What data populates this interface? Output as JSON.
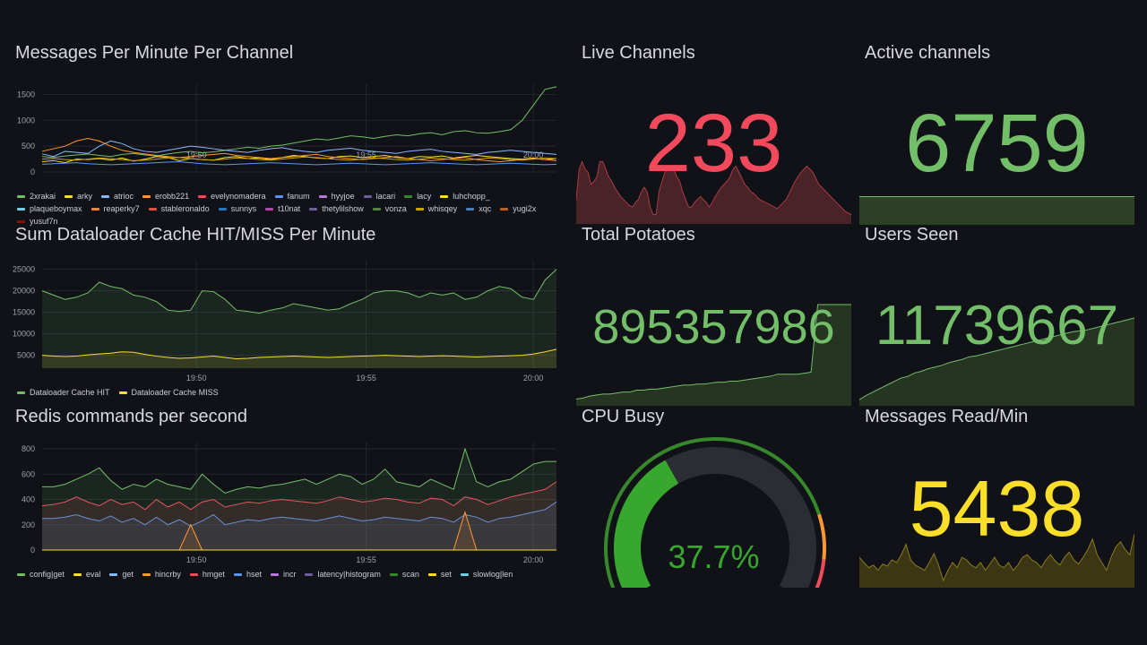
{
  "colors": {
    "red": "#f2495c",
    "green": "#73bf69",
    "yellow": "#fade2a",
    "gaugeGreen": "#37872d",
    "gaugeTrack": "#2a2d33"
  },
  "panels": {
    "messages": {
      "title": "Messages Per Minute Per Channel",
      "legend": [
        "2xrakai",
        "arky",
        "atrioc",
        "erobb221",
        "evelynomadera",
        "fanum",
        "hyyjoe",
        "lacari",
        "lacy",
        "luhchopp_",
        "plaqueboymax",
        "reaperky7",
        "stableronaldo",
        "sunnys",
        "t10nat",
        "thetylilshow",
        "vonza",
        "whisqey",
        "xqc",
        "yugi2x",
        "yusuf7n"
      ],
      "legendColors": [
        "#73bf69",
        "#fade2a",
        "#8ab8ff",
        "#ff9830",
        "#f2495c",
        "#5794f2",
        "#b877d9",
        "#705da0",
        "#37872d",
        "#fade2a",
        "#6ed0e0",
        "#ef843c",
        "#e24d42",
        "#1f78c1",
        "#ba43a9",
        "#705da0",
        "#508642",
        "#cca300",
        "#447ebc",
        "#c15c17",
        "#890f02"
      ]
    },
    "dataloader": {
      "title": "Sum Dataloader Cache HIT/MISS Per Minute",
      "legend": [
        "Dataloader Cache HIT",
        "Dataloader Cache MISS"
      ],
      "legendColors": [
        "#73bf69",
        "#fade2a"
      ]
    },
    "redis": {
      "title": "Redis commands per second",
      "legend": [
        "config|get",
        "eval",
        "get",
        "hincrby",
        "hmget",
        "hset",
        "incr",
        "latency|histogram",
        "scan",
        "set",
        "slowlog|len"
      ],
      "legendColors": [
        "#73bf69",
        "#fade2a",
        "#8ab8ff",
        "#ff9830",
        "#f2495c",
        "#5794f2",
        "#b877d9",
        "#705da0",
        "#37872d",
        "#fade2a",
        "#6ed0e0"
      ]
    },
    "liveChannels": {
      "title": "Live Channels",
      "value": "233"
    },
    "activeChannels": {
      "title": "Active channels",
      "value": "6759"
    },
    "totalPotatoes": {
      "title": "Total Potatoes",
      "value": "895357986"
    },
    "usersSeen": {
      "title": "Users Seen",
      "value": "11739667"
    },
    "cpuBusy": {
      "title": "CPU Busy",
      "value": "37.7%",
      "percent": 37.7
    },
    "messagesRead": {
      "title": "Messages Read/Min",
      "value": "5438"
    }
  },
  "chart_data": [
    {
      "type": "line",
      "title": "Messages Per Minute Per Channel",
      "xticks": [
        "19:50",
        "19:55",
        "20:00"
      ],
      "yticks": [
        "0",
        "500",
        "1000",
        "1500"
      ],
      "ylim": [
        0,
        1700
      ],
      "x": [
        0,
        1,
        2,
        3,
        4,
        5,
        6,
        7,
        8,
        9,
        10,
        11,
        12,
        13,
        14,
        15,
        16,
        17,
        18,
        19,
        20,
        21,
        22,
        23,
        24,
        25,
        26,
        27,
        28,
        29,
        30,
        31,
        32,
        33,
        34,
        35,
        36,
        37,
        38,
        39,
        40,
        41,
        42,
        43,
        44,
        45
      ],
      "series": [
        {
          "name": "2xrakai",
          "values": [
            300,
            280,
            310,
            330,
            350,
            320,
            300,
            340,
            360,
            330,
            310,
            350,
            380,
            400,
            370,
            390,
            420,
            450,
            480,
            460,
            500,
            520,
            560,
            600,
            640,
            620,
            660,
            700,
            680,
            650,
            690,
            720,
            700,
            740,
            760,
            720,
            780,
            800,
            760,
            750,
            780,
            820,
            1000,
            1300,
            1600,
            1650
          ]
        },
        {
          "name": "arky",
          "values": [
            200,
            220,
            180,
            250,
            240,
            260,
            230,
            270,
            210,
            250,
            300,
            280,
            220,
            260,
            240,
            230,
            280,
            300,
            260,
            270,
            240,
            280,
            320,
            300,
            270,
            260,
            300,
            310,
            280,
            300,
            320,
            280,
            260,
            300,
            290,
            310,
            270,
            300,
            320,
            300,
            280,
            260,
            250,
            270,
            240,
            260
          ]
        },
        {
          "name": "atrioc",
          "values": [
            350,
            300,
            400,
            380,
            360,
            500,
            600,
            550,
            450,
            400,
            380,
            420,
            460,
            500,
            480,
            450,
            420,
            400,
            380,
            420,
            450,
            470,
            430,
            400,
            380,
            420,
            440,
            460,
            420,
            400,
            380,
            360,
            400,
            420,
            440,
            400,
            380,
            360,
            340,
            380,
            400,
            420,
            400,
            380,
            360,
            340
          ]
        },
        {
          "name": "erobb221",
          "values": [
            400,
            450,
            500,
            600,
            650,
            600,
            500,
            420,
            380,
            350,
            320,
            300,
            280,
            300,
            320,
            340,
            360,
            320,
            300,
            280,
            260,
            280,
            300,
            320,
            340,
            300,
            280,
            260,
            240,
            260,
            280,
            300,
            260,
            240,
            220,
            240,
            260,
            280,
            240,
            220,
            200,
            220,
            240,
            260,
            240,
            220
          ]
        },
        {
          "name": "fanum",
          "values": [
            150,
            160,
            170,
            180,
            160,
            150,
            140,
            150,
            160,
            170,
            180,
            190,
            200,
            180,
            160,
            150,
            140,
            150,
            160,
            170,
            180,
            170,
            160,
            150,
            140,
            150,
            160,
            170,
            160,
            150,
            140,
            150,
            160,
            170,
            180,
            170,
            160,
            150,
            140,
            150,
            160,
            170,
            160,
            150,
            140,
            150
          ]
        },
        {
          "name": "whisqey",
          "values": [
            250,
            260,
            240,
            230,
            250,
            270,
            260,
            240,
            220,
            230,
            250,
            270,
            280,
            260,
            240,
            230,
            250,
            270,
            260,
            240,
            230,
            250,
            270,
            290,
            280,
            260,
            240,
            230,
            250,
            270,
            260,
            240,
            230,
            250,
            270,
            260,
            240,
            230,
            250,
            270,
            260,
            240,
            230,
            250,
            270,
            260
          ]
        }
      ]
    },
    {
      "type": "area",
      "title": "Sum Dataloader Cache HIT/MISS Per Minute",
      "xticks": [
        "19:50",
        "19:55",
        "20:00"
      ],
      "yticks": [
        "5000",
        "10000",
        "15000",
        "20000",
        "25000"
      ],
      "ylim": [
        2000,
        27000
      ],
      "x": [
        0,
        1,
        2,
        3,
        4,
        5,
        6,
        7,
        8,
        9,
        10,
        11,
        12,
        13,
        14,
        15,
        16,
        17,
        18,
        19,
        20,
        21,
        22,
        23,
        24,
        25,
        26,
        27,
        28,
        29,
        30,
        31,
        32,
        33,
        34,
        35,
        36,
        37,
        38,
        39,
        40,
        41,
        42,
        43,
        44,
        45
      ],
      "series": [
        {
          "name": "Dataloader Cache HIT",
          "values": [
            20000,
            19000,
            18000,
            18500,
            19500,
            22000,
            21000,
            20500,
            19000,
            18500,
            17500,
            15500,
            15200,
            15500,
            20000,
            19800,
            18000,
            15500,
            15200,
            14800,
            15500,
            16000,
            17000,
            16500,
            16000,
            15500,
            15800,
            17000,
            18000,
            19500,
            20000,
            20000,
            19500,
            18500,
            19500,
            19000,
            19500,
            18000,
            18500,
            20000,
            21000,
            20500,
            18500,
            18000,
            22500,
            25000
          ]
        },
        {
          "name": "Dataloader Cache MISS",
          "values": [
            5000,
            4800,
            4700,
            4800,
            5100,
            5300,
            5500,
            5800,
            5700,
            5200,
            4800,
            4500,
            4300,
            4400,
            4600,
            4800,
            4500,
            4200,
            4300,
            4500,
            4600,
            4700,
            4800,
            4700,
            4600,
            4500,
            4600,
            4700,
            4800,
            4900,
            5000,
            4900,
            4800,
            4700,
            4800,
            4900,
            4800,
            4700,
            4600,
            4700,
            4800,
            4900,
            5000,
            5300,
            5800,
            6400
          ]
        }
      ]
    },
    {
      "type": "area",
      "title": "Redis commands per second",
      "xticks": [
        "19:50",
        "19:55",
        "20:00"
      ],
      "yticks": [
        "0",
        "200",
        "400",
        "600",
        "800"
      ],
      "ylim": [
        0,
        850
      ],
      "x": [
        0,
        1,
        2,
        3,
        4,
        5,
        6,
        7,
        8,
        9,
        10,
        11,
        12,
        13,
        14,
        15,
        16,
        17,
        18,
        19,
        20,
        21,
        22,
        23,
        24,
        25,
        26,
        27,
        28,
        29,
        30,
        31,
        32,
        33,
        34,
        35,
        36,
        37,
        38,
        39,
        40,
        41,
        42,
        43,
        44,
        45
      ],
      "series": [
        {
          "name": "hset",
          "values": [
            250,
            250,
            260,
            280,
            250,
            230,
            270,
            220,
            250,
            200,
            260,
            200,
            240,
            190,
            230,
            280,
            200,
            220,
            240,
            230,
            250,
            260,
            250,
            240,
            230,
            250,
            270,
            250,
            230,
            240,
            260,
            250,
            240,
            230,
            260,
            250,
            220,
            280,
            260,
            220,
            250,
            260,
            280,
            300,
            320,
            380
          ]
        },
        {
          "name": "hmget",
          "values": [
            350,
            360,
            380,
            420,
            380,
            350,
            400,
            360,
            380,
            320,
            400,
            340,
            380,
            320,
            380,
            400,
            340,
            360,
            380,
            370,
            390,
            400,
            390,
            380,
            370,
            390,
            420,
            400,
            380,
            390,
            410,
            400,
            380,
            370,
            410,
            400,
            350,
            420,
            400,
            360,
            390,
            420,
            440,
            460,
            480,
            540
          ]
        },
        {
          "name": "config|get",
          "values": [
            500,
            500,
            520,
            560,
            600,
            650,
            550,
            480,
            520,
            500,
            560,
            520,
            500,
            480,
            600,
            520,
            450,
            480,
            500,
            490,
            510,
            520,
            540,
            560,
            520,
            560,
            600,
            580,
            520,
            560,
            640,
            540,
            520,
            500,
            560,
            520,
            480,
            800,
            540,
            500,
            540,
            560,
            620,
            680,
            700,
            700
          ]
        },
        {
          "name": "hincrby",
          "values": [
            0,
            0,
            0,
            0,
            0,
            0,
            0,
            0,
            0,
            0,
            0,
            0,
            0,
            200,
            0,
            0,
            0,
            0,
            0,
            0,
            0,
            0,
            0,
            0,
            0,
            0,
            0,
            0,
            0,
            0,
            0,
            0,
            0,
            0,
            0,
            0,
            0,
            300,
            0,
            0,
            0,
            0,
            0,
            0,
            0,
            0
          ]
        },
        {
          "name": "eval",
          "values": [
            0,
            0,
            0,
            0,
            0,
            0,
            0,
            0,
            0,
            0,
            0,
            0,
            0,
            0,
            0,
            0,
            0,
            0,
            0,
            0,
            0,
            0,
            0,
            0,
            0,
            0,
            0,
            0,
            0,
            0,
            0,
            0,
            0,
            0,
            0,
            0,
            0,
            0,
            0,
            0,
            0,
            0,
            0,
            0,
            0,
            0
          ]
        }
      ]
    },
    {
      "type": "area",
      "title": "Live Channels sparkline",
      "values": [
        210,
        230,
        235,
        230,
        228,
        220,
        222,
        225,
        235,
        235,
        230,
        225,
        222,
        218,
        215,
        212,
        210,
        208,
        206,
        205,
        208,
        210,
        215,
        218,
        215,
        205,
        200,
        200,
        215,
        222,
        228,
        230,
        232,
        230,
        225,
        222,
        215,
        210,
        205,
        205,
        208,
        210,
        212,
        210,
        208,
        205,
        208,
        212,
        215,
        218,
        220,
        222,
        225,
        230,
        232,
        228,
        224,
        220,
        218,
        215,
        214,
        212,
        210,
        209,
        208,
        207,
        206,
        205,
        204,
        206,
        208,
        210,
        214,
        218,
        222,
        225,
        228,
        230,
        232,
        230,
        228,
        224,
        220,
        218,
        216,
        214,
        212,
        210,
        208,
        206,
        204,
        202,
        201,
        200
      ]
    },
    {
      "type": "area",
      "title": "Total Potatoes sparkline",
      "values": [
        0.05,
        0.06,
        0.08,
        0.09,
        0.1,
        0.1,
        0.11,
        0.12,
        0.12,
        0.14,
        0.14,
        0.15,
        0.15,
        0.16,
        0.17,
        0.18,
        0.19,
        0.19,
        0.2,
        0.2,
        0.21,
        0.22,
        0.22,
        0.23,
        0.23,
        0.24,
        0.25,
        0.26,
        0.27,
        0.28,
        0.3,
        0.3,
        0.3,
        0.3,
        0.31,
        0.32,
        1.0,
        1.0,
        1.0,
        1.0,
        1.0,
        1.0
      ]
    },
    {
      "type": "area",
      "title": "Users Seen sparkline",
      "values": [
        0.05,
        0.1,
        0.14,
        0.18,
        0.22,
        0.26,
        0.3,
        0.32,
        0.36,
        0.38,
        0.41,
        0.43,
        0.45,
        0.48,
        0.5,
        0.52,
        0.55,
        0.56,
        0.58,
        0.6,
        0.62,
        0.64,
        0.66,
        0.68,
        0.7,
        0.72,
        0.74,
        0.76,
        0.78,
        0.8,
        0.82,
        0.84,
        0.85,
        0.86,
        0.88,
        0.9,
        0.92,
        0.94,
        0.96,
        0.98,
        1.0
      ]
    },
    {
      "type": "area",
      "title": "Messages Read/Min sparkline",
      "values": [
        0.55,
        0.45,
        0.35,
        0.4,
        0.3,
        0.42,
        0.38,
        0.5,
        0.45,
        0.6,
        0.8,
        0.5,
        0.4,
        0.35,
        0.3,
        0.45,
        0.62,
        0.4,
        0.1,
        0.3,
        0.45,
        0.35,
        0.55,
        0.5,
        0.4,
        0.35,
        0.45,
        0.3,
        0.42,
        0.55,
        0.4,
        0.35,
        0.45,
        0.3,
        0.4,
        0.55,
        0.6,
        0.5,
        0.45,
        0.35,
        0.5,
        0.6,
        0.48,
        0.4,
        0.55,
        0.65,
        0.5,
        0.42,
        0.55,
        0.7,
        0.9,
        0.6,
        0.45,
        0.3,
        0.55,
        0.75,
        0.85,
        0.7,
        0.6,
        1.0
      ]
    }
  ]
}
